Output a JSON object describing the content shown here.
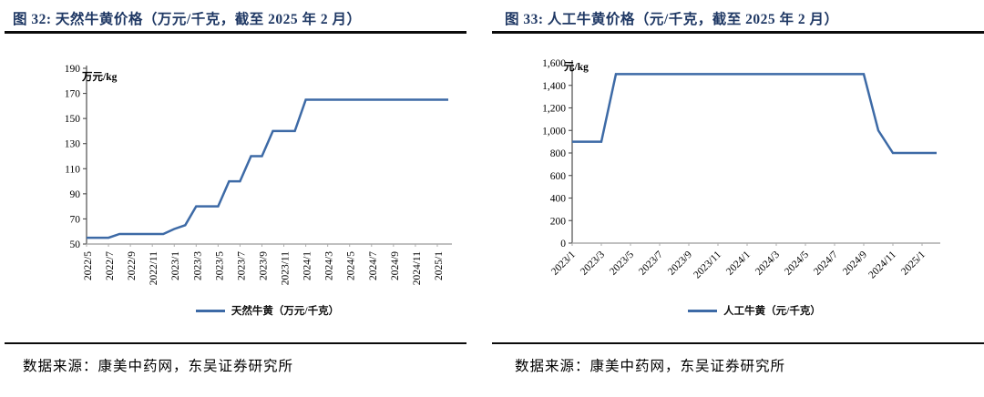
{
  "colors": {
    "title": "#1F3864",
    "line": "#3D6AA6",
    "y_axis": "#4D4D4D",
    "x_axis": "#ABABAB",
    "rule": "#0B0B0B"
  },
  "panels": [
    {
      "title": "图 32:  天然牛黄价格（万元/千克，截至 2025 年 2 月）",
      "source": "数据来源：康美中药网，东吴证券研究所"
    },
    {
      "title": "图 33:  人工牛黄价格（元/千克，截至 2025 年 2 月）",
      "source": "数据来源：康美中药网，东吴证券研究所"
    }
  ],
  "chart_data": [
    {
      "type": "line",
      "title": "天然牛黄价格",
      "ylabel": "万元/kg",
      "xlabel": "",
      "grid": false,
      "legend_position": "bottom",
      "x_label_rotation": "vertical",
      "x_tick_every": 2,
      "ylim": [
        50,
        190
      ],
      "y_tick_values": [
        50,
        70,
        90,
        110,
        130,
        150,
        170,
        190
      ],
      "y_tick_labels": [
        "50",
        "70",
        "90",
        "110",
        "130",
        "150",
        "170",
        "190"
      ],
      "x": [
        "2022/5",
        "2022/6",
        "2022/7",
        "2022/8",
        "2022/9",
        "2022/10",
        "2022/11",
        "2022/12",
        "2023/1",
        "2023/2",
        "2023/3",
        "2023/4",
        "2023/5",
        "2023/6",
        "2023/7",
        "2023/8",
        "2023/9",
        "2023/10",
        "2023/11",
        "2023/12",
        "2024/1",
        "2024/2",
        "2024/3",
        "2024/4",
        "2024/5",
        "2024/6",
        "2024/7",
        "2024/8",
        "2024/9",
        "2024/10",
        "2024/11",
        "2024/12",
        "2025/1",
        "2025/2"
      ],
      "line_color": "#3D6AA6",
      "series": [
        {
          "name": "天然牛黄（万元/千克）",
          "values": [
            55,
            55,
            55,
            58,
            58,
            58,
            58,
            58,
            62,
            65,
            80,
            80,
            80,
            100,
            100,
            120,
            120,
            140,
            140,
            140,
            165,
            165,
            165,
            165,
            165,
            165,
            165,
            165,
            165,
            165,
            165,
            165,
            165,
            165
          ]
        }
      ]
    },
    {
      "type": "line",
      "title": "人工牛黄价格",
      "ylabel": "元/kg",
      "xlabel": "",
      "grid": false,
      "legend_position": "bottom",
      "x_label_rotation": "diagonal",
      "x_tick_every": 2,
      "ylim": [
        0,
        1600
      ],
      "y_tick_values": [
        0,
        200,
        400,
        600,
        800,
        1000,
        1200,
        1400,
        1600
      ],
      "y_tick_labels": [
        "0",
        "200",
        "400",
        "600",
        "800",
        "1,000",
        "1,200",
        "1,400",
        "1,600"
      ],
      "x": [
        "2023/1",
        "2023/2",
        "2023/3",
        "2023/4",
        "2023/5",
        "2023/6",
        "2023/7",
        "2023/8",
        "2023/9",
        "2023/10",
        "2023/11",
        "2023/12",
        "2024/1",
        "2024/2",
        "2024/3",
        "2024/4",
        "2024/5",
        "2024/6",
        "2024/7",
        "2024/8",
        "2024/9",
        "2024/10",
        "2024/11",
        "2024/12",
        "2025/1",
        "2025/2"
      ],
      "line_color": "#3D6AA6",
      "series": [
        {
          "name": "人工牛黄（元/千克）",
          "values": [
            900,
            900,
            900,
            1500,
            1500,
            1500,
            1500,
            1500,
            1500,
            1500,
            1500,
            1500,
            1500,
            1500,
            1500,
            1500,
            1500,
            1500,
            1500,
            1500,
            1500,
            1000,
            800,
            800,
            800,
            800
          ]
        }
      ]
    }
  ]
}
